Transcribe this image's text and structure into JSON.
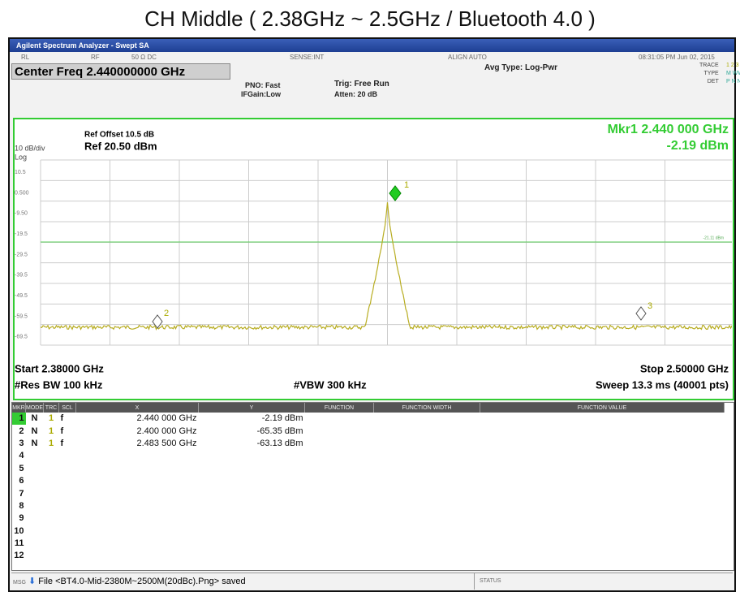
{
  "title": "CH Middle ( 2.38GHz ~ 2.5GHz / Bluetooth 4.0 )",
  "window": {
    "app_title": "Agilent Spectrum Analyzer - Swept SA",
    "status_items": [
      "RL",
      "RF",
      "50 Ω  DC",
      "SENSE:INT",
      "ALIGN AUTO",
      "08:31:05 PM Jun 02, 2015"
    ],
    "center_freq": "Center Freq 2.440000000 GHz",
    "pno": "PNO: Fast",
    "ifgain": "IFGain:Low",
    "trig": "Trig: Free Run",
    "atten": "Atten: 20 dB",
    "avg_type": "Avg Type: Log-Pwr",
    "trace_labels": [
      "TRACE",
      "TYPE",
      "DET"
    ],
    "trace_values": [
      "1 2 3 4 5 6",
      "M WWWWW",
      "P N N N N N"
    ]
  },
  "plot": {
    "ref_offset": "Ref Offset 10.5 dB",
    "ref_level": "Ref 20.50 dBm",
    "scale": "10 dB/div",
    "log": "Log",
    "marker_freq": "Mkr1 2.440 000 GHz",
    "marker_level": "-2.19 dBm",
    "y_labels": [
      "10.5",
      "0.500",
      "-9.50",
      "-19.5",
      "-29.5",
      "-39.5",
      "-49.5",
      "-59.5",
      "-69.5"
    ],
    "display_line": "-21.11 dBm",
    "marker_labels": [
      "1",
      "2",
      "3"
    ],
    "start": "Start 2.38000 GHz",
    "stop": "Stop 2.50000 GHz",
    "rbw": "#Res BW 100 kHz",
    "vbw": "#VBW 300 kHz",
    "sweep": "Sweep  13.3 ms (40001 pts)"
  },
  "table": {
    "headers": [
      "MKR",
      "MODE",
      "TRC",
      "SCL",
      "X",
      "Y",
      "FUNCTION",
      "FUNCTION WIDTH",
      "FUNCTION VALUE"
    ],
    "rows": [
      [
        "1",
        "N",
        "1",
        "f",
        "2.440 000 GHz",
        "-2.19 dBm"
      ],
      [
        "2",
        "N",
        "1",
        "f",
        "2.400 000 GHz",
        "-65.35 dBm"
      ],
      [
        "3",
        "N",
        "1",
        "f",
        "2.483 500 GHz",
        "-63.13 dBm"
      ],
      [
        "4"
      ],
      [
        "5"
      ],
      [
        "6"
      ],
      [
        "7"
      ],
      [
        "8"
      ],
      [
        "9"
      ],
      [
        "10"
      ],
      [
        "11"
      ],
      [
        "12"
      ]
    ]
  },
  "status": {
    "msg": "MSG",
    "file": "File <BT4.0-Mid-2380M~2500M(20dBc).Png> saved",
    "status": "STATUS"
  }
}
